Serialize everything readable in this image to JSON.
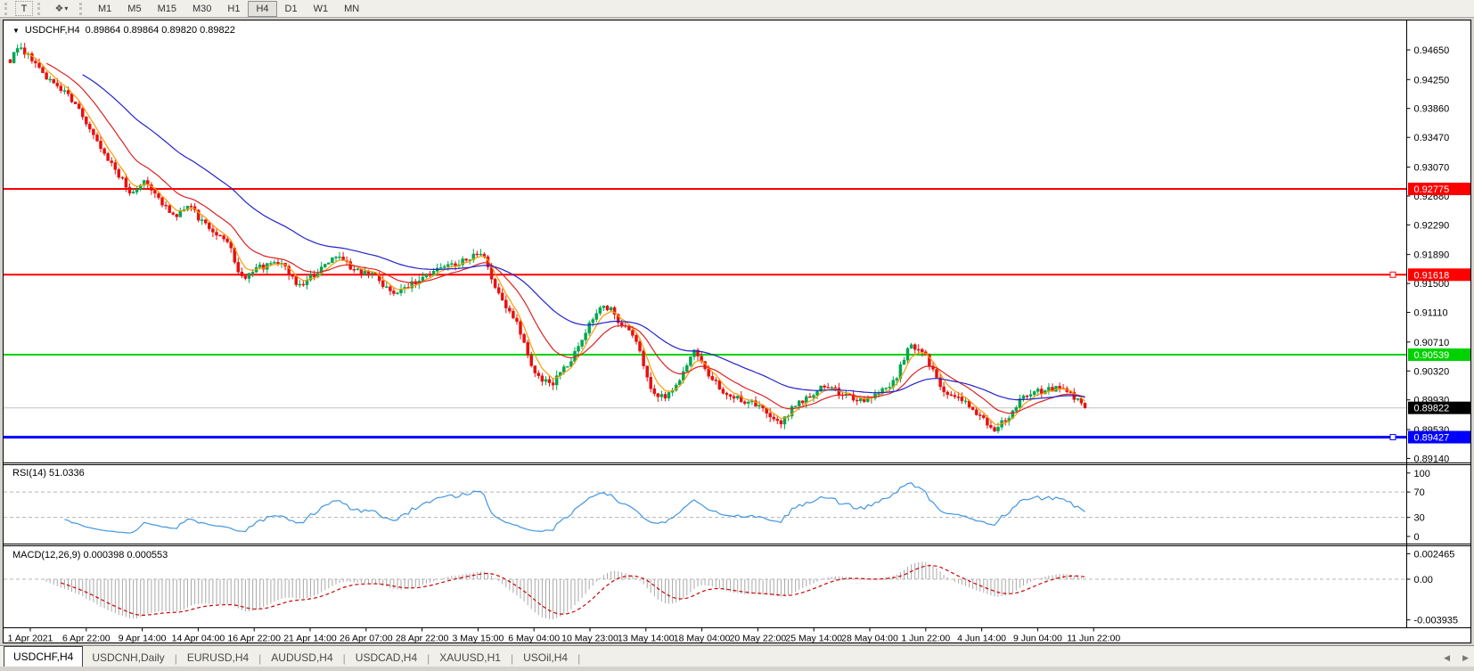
{
  "toolbar": {
    "text_tool": "T",
    "timeframes": [
      "M1",
      "M5",
      "M15",
      "M30",
      "H1",
      "H4",
      "D1",
      "W1",
      "MN"
    ],
    "active_timeframe": "H4"
  },
  "chart": {
    "title_symbol": "USDCHF,H4",
    "title_ohlc": "0.89864 0.89864 0.89820 0.89822"
  },
  "chart_data": {
    "type": "candlestick",
    "symbol": "USDCHF",
    "timeframe": "H4",
    "title": "USDCHF,H4  0.89864 0.89864 0.89820 0.89822",
    "ohlc": {
      "open": "0.89864",
      "high": "0.89864",
      "low": "0.89820",
      "close": "0.89822"
    },
    "axis_range": {
      "top_price": 0.9465,
      "bottom_price": 0.8914
    },
    "y_tick_labels": [
      "0.94650",
      "0.94250",
      "0.93860",
      "0.93470",
      "0.93070",
      "0.92680",
      "0.92290",
      "0.91890",
      "0.91500",
      "0.91110",
      "0.90710",
      "0.90320",
      "0.89930",
      "0.89530",
      "0.89140"
    ],
    "y_tick_values": [
      0.9465,
      0.9425,
      0.9386,
      0.9347,
      0.9307,
      0.9268,
      0.9229,
      0.9189,
      0.915,
      0.9111,
      0.9071,
      0.9032,
      0.8993,
      0.8953,
      0.8914
    ],
    "x_tick_labels": [
      "1 Apr 2021",
      "6 Apr 22:00",
      "9 Apr 14:00",
      "14 Apr 04:00",
      "16 Apr 22:00",
      "21 Apr 14:00",
      "26 Apr 07:00",
      "28 Apr 22:00",
      "3 May 15:00",
      "6 May 04:00",
      "10 May 23:00",
      "13 May 14:00",
      "18 May 04:00",
      "20 May 22:00",
      "25 May 14:00",
      "28 May 04:00",
      "1 Jun 22:00",
      "4 Jun 14:00",
      "9 Jun 04:00",
      "11 Jun 22:00"
    ],
    "horizontal_lines": [
      {
        "price": 0.92775,
        "label": "0.92775",
        "color": "#ff0000",
        "width": 2,
        "handle": false
      },
      {
        "price": 0.91618,
        "label": "0.91618",
        "color": "#ff0000",
        "width": 2,
        "handle": true
      },
      {
        "price": 0.90539,
        "label": "0.90539",
        "color": "#00d200",
        "width": 2,
        "handle": false
      },
      {
        "price": 0.89427,
        "label": "0.89427",
        "color": "#0000ff",
        "width": 3,
        "handle": true
      }
    ],
    "current_price": {
      "value": 0.89822,
      "label": "0.89822",
      "tag_color": "#000000"
    },
    "bar_count": 298,
    "price_path": [
      [
        0.0,
        0.9452
      ],
      [
        0.01,
        0.9468
      ],
      [
        0.022,
        0.9452
      ],
      [
        0.031,
        0.9428
      ],
      [
        0.051,
        0.9408
      ],
      [
        0.064,
        0.9382
      ],
      [
        0.08,
        0.934
      ],
      [
        0.097,
        0.9306
      ],
      [
        0.112,
        0.9272
      ],
      [
        0.124,
        0.9288
      ],
      [
        0.141,
        0.9258
      ],
      [
        0.152,
        0.9238
      ],
      [
        0.167,
        0.9252
      ],
      [
        0.186,
        0.9222
      ],
      [
        0.202,
        0.9208
      ],
      [
        0.215,
        0.9158
      ],
      [
        0.234,
        0.9172
      ],
      [
        0.252,
        0.9178
      ],
      [
        0.267,
        0.9146
      ],
      [
        0.283,
        0.9162
      ],
      [
        0.302,
        0.9188
      ],
      [
        0.318,
        0.917
      ],
      [
        0.341,
        0.9158
      ],
      [
        0.358,
        0.9132
      ],
      [
        0.376,
        0.9152
      ],
      [
        0.399,
        0.9172
      ],
      [
        0.42,
        0.918
      ],
      [
        0.439,
        0.9192
      ],
      [
        0.456,
        0.913
      ],
      [
        0.472,
        0.9095
      ],
      [
        0.489,
        0.9026
      ],
      [
        0.503,
        0.9012
      ],
      [
        0.517,
        0.9038
      ],
      [
        0.532,
        0.9072
      ],
      [
        0.544,
        0.9112
      ],
      [
        0.557,
        0.9118
      ],
      [
        0.571,
        0.909
      ],
      [
        0.583,
        0.9072
      ],
      [
        0.596,
        0.9004
      ],
      [
        0.609,
        0.8996
      ],
      [
        0.625,
        0.9026
      ],
      [
        0.637,
        0.9062
      ],
      [
        0.65,
        0.9026
      ],
      [
        0.666,
        0.9
      ],
      [
        0.683,
        0.899
      ],
      [
        0.7,
        0.8984
      ],
      [
        0.716,
        0.8958
      ],
      [
        0.729,
        0.8986
      ],
      [
        0.743,
        0.8998
      ],
      [
        0.757,
        0.9014
      ],
      [
        0.772,
        0.9002
      ],
      [
        0.787,
        0.8992
      ],
      [
        0.803,
        0.8998
      ],
      [
        0.822,
        0.9016
      ],
      [
        0.838,
        0.9068
      ],
      [
        0.852,
        0.905
      ],
      [
        0.866,
        0.9008
      ],
      [
        0.881,
        0.8997
      ],
      [
        0.898,
        0.8978
      ],
      [
        0.915,
        0.895
      ],
      [
        0.927,
        0.8968
      ],
      [
        0.94,
        0.8992
      ],
      [
        0.956,
        0.9004
      ],
      [
        0.973,
        0.9008
      ],
      [
        0.988,
        0.9
      ],
      [
        1.0,
        0.89822
      ]
    ],
    "indicators": {
      "rsi": {
        "label": "RSI(14) 51.0336",
        "period": 14,
        "value": 51.0336,
        "level_labels": [
          "100",
          "70",
          "30",
          "0"
        ],
        "level_values": [
          100,
          70,
          30,
          0
        ],
        "dashed_levels": [
          70,
          30
        ]
      },
      "macd": {
        "label": "MACD(12,26,9) 0.000398 0.000553",
        "fast": 12,
        "slow": 26,
        "signal": 9,
        "macd_value": 0.000398,
        "signal_value": 0.000553,
        "y_tick_labels": [
          "0.002465",
          "0.00",
          "-0.003935"
        ],
        "y_tick_values": [
          0.002465,
          0,
          -0.003935
        ]
      }
    },
    "colors": {
      "up": "#00a651",
      "down": "#e81010",
      "ma_fast": "#ff9900",
      "ma_mid": "#dd2222",
      "ma_slow": "#2222cc",
      "rsi_line": "#4296e0",
      "macd_hist": "#a9a9a9",
      "macd_signal": "#cc0000",
      "current_price_line": "#c0c0c0",
      "level_dash": "#b4b4b4"
    },
    "legend_position": "none",
    "grid": "off"
  },
  "tabs": {
    "items": [
      "USDCHF,H4",
      "USDCNH,Daily",
      "EURUSD,H4",
      "AUDUSD,H4",
      "USDCAD,H4",
      "XAUUSD,H1",
      "USOil,H4"
    ],
    "active": "USDCHF,H4"
  }
}
